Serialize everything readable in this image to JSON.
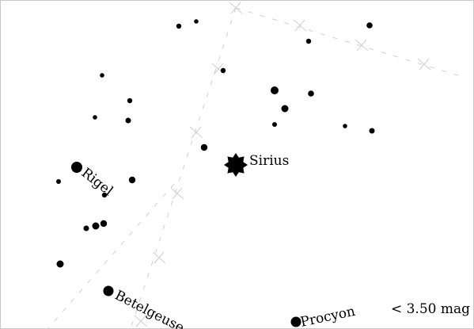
{
  "map": {
    "background": "#ffffff",
    "star_color": "#000000",
    "grid_color": "#d0d0d0",
    "magnitude_limit_label": "< 3.50 mag"
  },
  "labels": {
    "sirius": "Sirius",
    "rigel": "Rigel",
    "betelgeuse": "Betelgeuse",
    "procyon": "Procyon"
  }
}
